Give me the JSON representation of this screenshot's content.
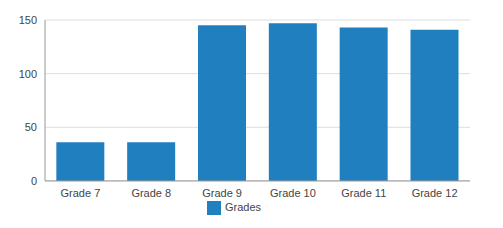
{
  "chart_data": {
    "type": "bar",
    "categories": [
      "Grade 7",
      "Grade 8",
      "Grade 9",
      "Grade 10",
      "Grade 11",
      "Grade 12"
    ],
    "series": [
      {
        "name": "Grades",
        "color": "#1f7fbf",
        "values": [
          36,
          36,
          145,
          147,
          143,
          141
        ]
      }
    ],
    "ylim": [
      0,
      150
    ],
    "yticks": [
      0,
      50,
      100,
      150
    ],
    "grid": true,
    "legend": "bottom"
  }
}
